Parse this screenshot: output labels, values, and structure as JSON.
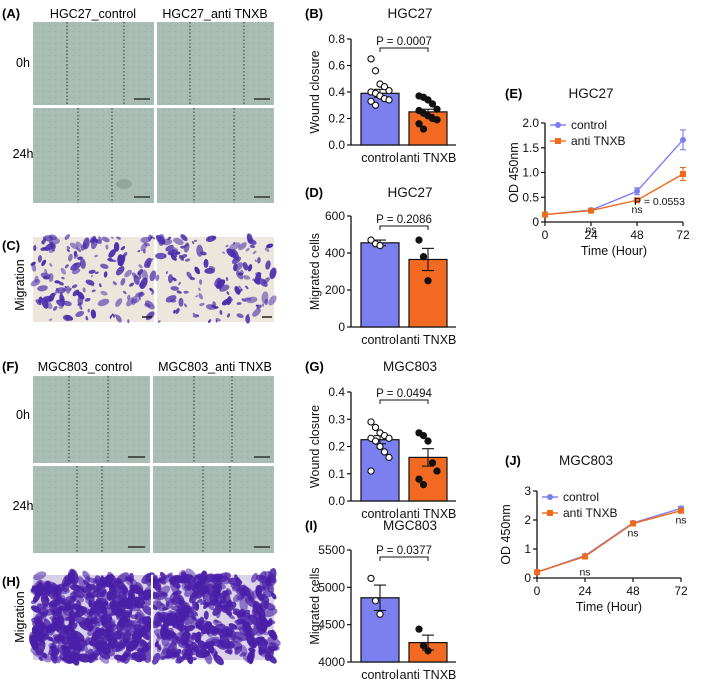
{
  "colors": {
    "control": "#7b7ff0",
    "anti": "#f26a21",
    "line_control": "#7a7ef2",
    "line_anti": "#f06a1e",
    "wound_bg": "#a9bdb4",
    "migration_bg": "#ece6dc",
    "migration_stain": "#4b2dac",
    "dense_stain": "#4a1fa8"
  },
  "panels": {
    "A": {
      "label": "(A)",
      "columns": [
        "HGC27_control",
        "HGC27_anti TNXB"
      ],
      "rows": [
        "0h",
        "24h"
      ]
    },
    "C": {
      "label": "(C)",
      "row_label": "Migration"
    },
    "F": {
      "label": "(F)",
      "columns": [
        "MGC803_control",
        "MGC803_anti TNXB"
      ],
      "rows": [
        "0h",
        "24h"
      ]
    },
    "H": {
      "label": "(H)",
      "row_label": "Migration"
    },
    "B": {
      "label": "(B)"
    },
    "D": {
      "label": "(D)"
    },
    "E": {
      "label": "(E)"
    },
    "G": {
      "label": "(G)"
    },
    "I": {
      "label": "(I)"
    },
    "J": {
      "label": "(J)"
    }
  },
  "chart_data": [
    {
      "id": "B",
      "type": "bar",
      "title": "HGC27",
      "ylabel": "Wound closure",
      "ylim": [
        0.0,
        0.8
      ],
      "yticks": [
        "0.0",
        "0.2",
        "0.4",
        "0.6",
        "0.8"
      ],
      "categories": [
        "control",
        "anti TNXB"
      ],
      "values": [
        0.39,
        0.25
      ],
      "sem": [
        0.03,
        0.02
      ],
      "points": [
        [
          0.65,
          0.56,
          0.46,
          0.44,
          0.41,
          0.4,
          0.39,
          0.37,
          0.35,
          0.34,
          0.33,
          0.3
        ],
        [
          0.37,
          0.36,
          0.34,
          0.31,
          0.27,
          0.26,
          0.24,
          0.22,
          0.2,
          0.19,
          0.16,
          0.12
        ]
      ],
      "annotation": "P = 0.0007"
    },
    {
      "id": "D",
      "type": "bar",
      "title": "HGC27",
      "ylabel": "Migrated cells",
      "ylim": [
        0,
        600
      ],
      "yticks": [
        "0",
        "200",
        "400",
        "600"
      ],
      "categories": [
        "control",
        "anti TNXB"
      ],
      "values": [
        455,
        365
      ],
      "sem": [
        15,
        60
      ],
      "points": [
        [
          470,
          450,
          440
        ],
        [
          470,
          380,
          250
        ]
      ],
      "annotation": "P = 0.2086"
    },
    {
      "id": "E",
      "type": "line",
      "title": "HGC27",
      "xlabel": "Time (Hour)",
      "ylabel": "OD 450nm",
      "xlim": [
        0,
        72
      ],
      "ylim": [
        0,
        2.0
      ],
      "xticks": [
        "0",
        "24",
        "48",
        "72"
      ],
      "yticks": [
        "0",
        "0.5",
        "1.0",
        "1.5",
        "2.0"
      ],
      "x": [
        0,
        24,
        48,
        72
      ],
      "series": [
        {
          "name": "control",
          "values": [
            0.15,
            0.24,
            0.62,
            1.66
          ],
          "err": [
            0.03,
            0.03,
            0.07,
            0.2
          ]
        },
        {
          "name": "anti TNXB",
          "values": [
            0.15,
            0.23,
            0.44,
            0.97
          ],
          "err": [
            0.03,
            0.03,
            0.04,
            0.13
          ]
        }
      ],
      "annotations": [
        {
          "text": "ns",
          "x": 24
        },
        {
          "text": "ns",
          "x": 48
        },
        {
          "text": "P = 0.0553",
          "x": 72
        }
      ]
    },
    {
      "id": "G",
      "type": "bar",
      "title": "MGC803",
      "ylabel": "Wound closure",
      "ylim": [
        0.0,
        0.4
      ],
      "yticks": [
        "0.0",
        "0.1",
        "0.2",
        "0.3",
        "0.4"
      ],
      "categories": [
        "control",
        "anti TNXB"
      ],
      "values": [
        0.225,
        0.16
      ],
      "sem": [
        0.015,
        0.032
      ],
      "points": [
        [
          0.29,
          0.27,
          0.25,
          0.24,
          0.23,
          0.23,
          0.22,
          0.2,
          0.18,
          0.16,
          0.11
        ],
        [
          0.25,
          0.24,
          0.22,
          0.14,
          0.11,
          0.08,
          0.06
        ]
      ],
      "annotation": "P = 0.0494"
    },
    {
      "id": "I",
      "type": "bar",
      "title": "MGC803",
      "ylabel": "Migrated cells",
      "ylim": [
        4000,
        5500
      ],
      "yticks": [
        "4000",
        "4500",
        "5000",
        "5500"
      ],
      "categories": [
        "control",
        "anti TNXB"
      ],
      "values": [
        4860,
        4260
      ],
      "sem": [
        170,
        100
      ],
      "points": [
        [
          5120,
          4820,
          4640
        ],
        [
          4440,
          4220,
          4150
        ]
      ],
      "annotation": "P = 0.0377"
    },
    {
      "id": "J",
      "type": "line",
      "title": "MGC803",
      "xlabel": "Time (Hour)",
      "ylabel": "OD 450nm",
      "xlim": [
        0,
        72
      ],
      "ylim": [
        0,
        3
      ],
      "xticks": [
        "0",
        "24",
        "48",
        "72"
      ],
      "yticks": [
        "0",
        "1",
        "2",
        "3"
      ],
      "x": [
        0,
        24,
        48,
        72
      ],
      "series": [
        {
          "name": "control",
          "values": [
            0.2,
            0.77,
            1.9,
            2.4
          ],
          "err": [
            0.03,
            0.05,
            0.05,
            0.07
          ]
        },
        {
          "name": "anti TNXB",
          "values": [
            0.2,
            0.74,
            1.88,
            2.32
          ],
          "err": [
            0.03,
            0.05,
            0.05,
            0.08
          ]
        }
      ],
      "annotations": [
        {
          "text": "ns",
          "x": 24
        },
        {
          "text": "ns",
          "x": 48
        },
        {
          "text": "ns",
          "x": 72
        }
      ]
    }
  ]
}
